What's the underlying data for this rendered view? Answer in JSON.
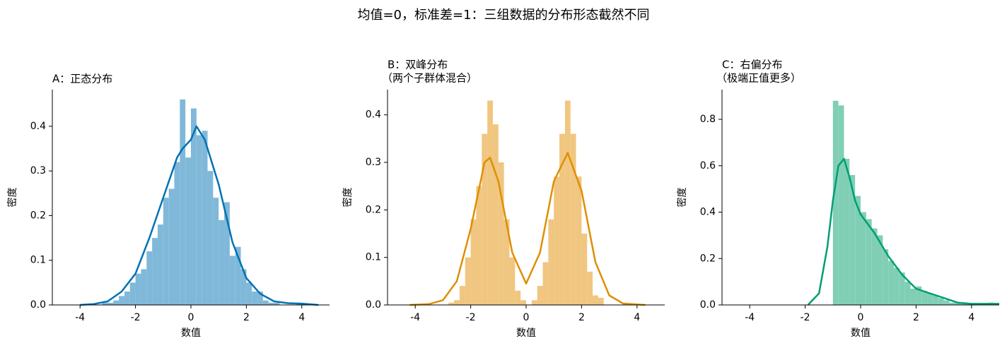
{
  "title": "均值=0，标准差=1：三组数据的分布形态截然不同",
  "chart_data": [
    {
      "type": "histogram",
      "title": "A：正态分布",
      "xlabel": "数值",
      "ylabel": "密度",
      "bins": [
        -3.2,
        -3.0,
        -2.8,
        -2.6,
        -2.4,
        -2.2,
        -2.0,
        -1.8,
        -1.6,
        -1.4,
        -1.2,
        -1.0,
        -0.8,
        -0.6,
        -0.4,
        -0.2,
        0.0,
        0.2,
        0.4,
        0.6,
        0.8,
        1.0,
        1.2,
        1.4,
        1.6,
        1.8,
        2.0,
        2.2,
        2.4,
        2.6,
        2.8,
        3.0,
        3.2,
        3.4,
        3.6,
        3.8,
        4.0
      ],
      "counts": [
        0.005,
        0.005,
        0.01,
        0.02,
        0.03,
        0.05,
        0.07,
        0.08,
        0.12,
        0.15,
        0.18,
        0.24,
        0.26,
        0.32,
        0.46,
        0.33,
        0.44,
        0.38,
        0.39,
        0.3,
        0.24,
        0.19,
        0.23,
        0.11,
        0.13,
        0.08,
        0.05,
        0.03,
        0.03,
        0.01,
        0.005,
        0.005,
        0,
        0,
        0,
        0.005
      ],
      "color": "#80b8d9",
      "kde": {
        "color": "#0072b2",
        "x": [
          -4,
          -3.5,
          -3,
          -2.5,
          -2,
          -1.5,
          -1,
          -0.5,
          -0.3,
          0,
          0.2,
          0.5,
          1,
          1.5,
          2,
          2.5,
          3,
          3.5,
          4,
          4.6
        ],
        "values": [
          0,
          0.002,
          0.008,
          0.03,
          0.07,
          0.15,
          0.24,
          0.33,
          0.35,
          0.37,
          0.4,
          0.37,
          0.27,
          0.14,
          0.06,
          0.025,
          0.008,
          0.004,
          0.003,
          0
        ]
      },
      "xlim": [
        -5,
        5
      ],
      "xticks": [
        -4,
        -2,
        0,
        2,
        4
      ],
      "ylim": [
        0,
        0.482
      ],
      "yticks": [
        {
          "value": 0,
          "label": "0.0"
        },
        0.1,
        0.2,
        0.3,
        0.4
      ]
    },
    {
      "type": "histogram",
      "title": "B：双峰分布",
      "subtitle": "（两个子群体混合）",
      "xlabel": "数值",
      "ylabel": "密度",
      "bins": [
        -2.8,
        -2.6,
        -2.4,
        -2.2,
        -2.0,
        -1.8,
        -1.6,
        -1.4,
        -1.2,
        -1.0,
        -0.8,
        -0.6,
        -0.4,
        -0.2,
        0.0,
        0.2,
        0.4,
        0.6,
        0.8,
        1.0,
        1.2,
        1.4,
        1.6,
        1.8,
        2.0,
        2.2,
        2.4,
        2.6,
        2.8
      ],
      "counts": [
        0.005,
        0.01,
        0.04,
        0.1,
        0.18,
        0.25,
        0.36,
        0.43,
        0.38,
        0.3,
        0.18,
        0.1,
        0.03,
        0.01,
        0,
        0.01,
        0.04,
        0.09,
        0.18,
        0.27,
        0.36,
        0.43,
        0.36,
        0.27,
        0.15,
        0.07,
        0.02,
        0.015
      ],
      "color": "#f0c680",
      "kde": {
        "color": "#de8f05",
        "x": [
          -4.2,
          -3.5,
          -3,
          -2.5,
          -2,
          -1.5,
          -1.3,
          -1,
          -0.5,
          0,
          0.5,
          1,
          1.5,
          2,
          2.5,
          3,
          3.5,
          4.3
        ],
        "values": [
          0,
          0.002,
          0.01,
          0.05,
          0.16,
          0.3,
          0.31,
          0.26,
          0.11,
          0.045,
          0.11,
          0.26,
          0.32,
          0.24,
          0.09,
          0.02,
          0.003,
          0
        ]
      },
      "xlim": [
        -5,
        5
      ],
      "xticks": [
        -4,
        -2,
        0,
        2,
        4
      ],
      "ylim": [
        0,
        0.453
      ],
      "yticks": [
        {
          "value": 0,
          "label": "0.0"
        },
        0.1,
        0.2,
        0.3,
        0.4
      ]
    },
    {
      "type": "histogram",
      "title": "C：右偏分布",
      "subtitle": "（极端正值更多）",
      "xlabel": "数值",
      "ylabel": "密度",
      "bins": [
        -1.0,
        -0.8,
        -0.6,
        -0.4,
        -0.2,
        0.0,
        0.2,
        0.4,
        0.6,
        0.8,
        1.0,
        1.2,
        1.4,
        1.6,
        1.8,
        2.0,
        2.2,
        2.4,
        2.6,
        2.8,
        3.0,
        3.2,
        3.4,
        3.6,
        3.8,
        4.0,
        4.2,
        4.4,
        4.6,
        4.8,
        5.0
      ],
      "counts": [
        0.88,
        0.86,
        0.63,
        0.56,
        0.47,
        0.4,
        0.37,
        0.33,
        0.3,
        0.24,
        0.19,
        0.16,
        0.14,
        0.1,
        0.07,
        0.08,
        0.06,
        0.05,
        0.04,
        0.03,
        0.02,
        0.01,
        0.01,
        0.005,
        0.005,
        0.005,
        0.005,
        0.005,
        0.01,
        0.005
      ],
      "color": "#80cfb5",
      "kde": {
        "color": "#029e73",
        "x": [
          -1.9,
          -1.5,
          -1.2,
          -1,
          -0.8,
          -0.6,
          -0.4,
          -0.2,
          0,
          0.5,
          1,
          1.5,
          2,
          2.5,
          3,
          3.5,
          4,
          5
        ],
        "values": [
          0,
          0.05,
          0.25,
          0.45,
          0.6,
          0.63,
          0.55,
          0.45,
          0.39,
          0.31,
          0.21,
          0.13,
          0.07,
          0.05,
          0.03,
          0.01,
          0.005,
          0.005
        ]
      },
      "xlim": [
        -5,
        5
      ],
      "xticks": [
        -4,
        -2,
        0,
        2,
        4
      ],
      "ylim": [
        0,
        0.928
      ],
      "yticks": [
        {
          "value": 0,
          "label": "0.0"
        },
        0.2,
        0.4,
        0.6,
        0.8
      ]
    }
  ]
}
